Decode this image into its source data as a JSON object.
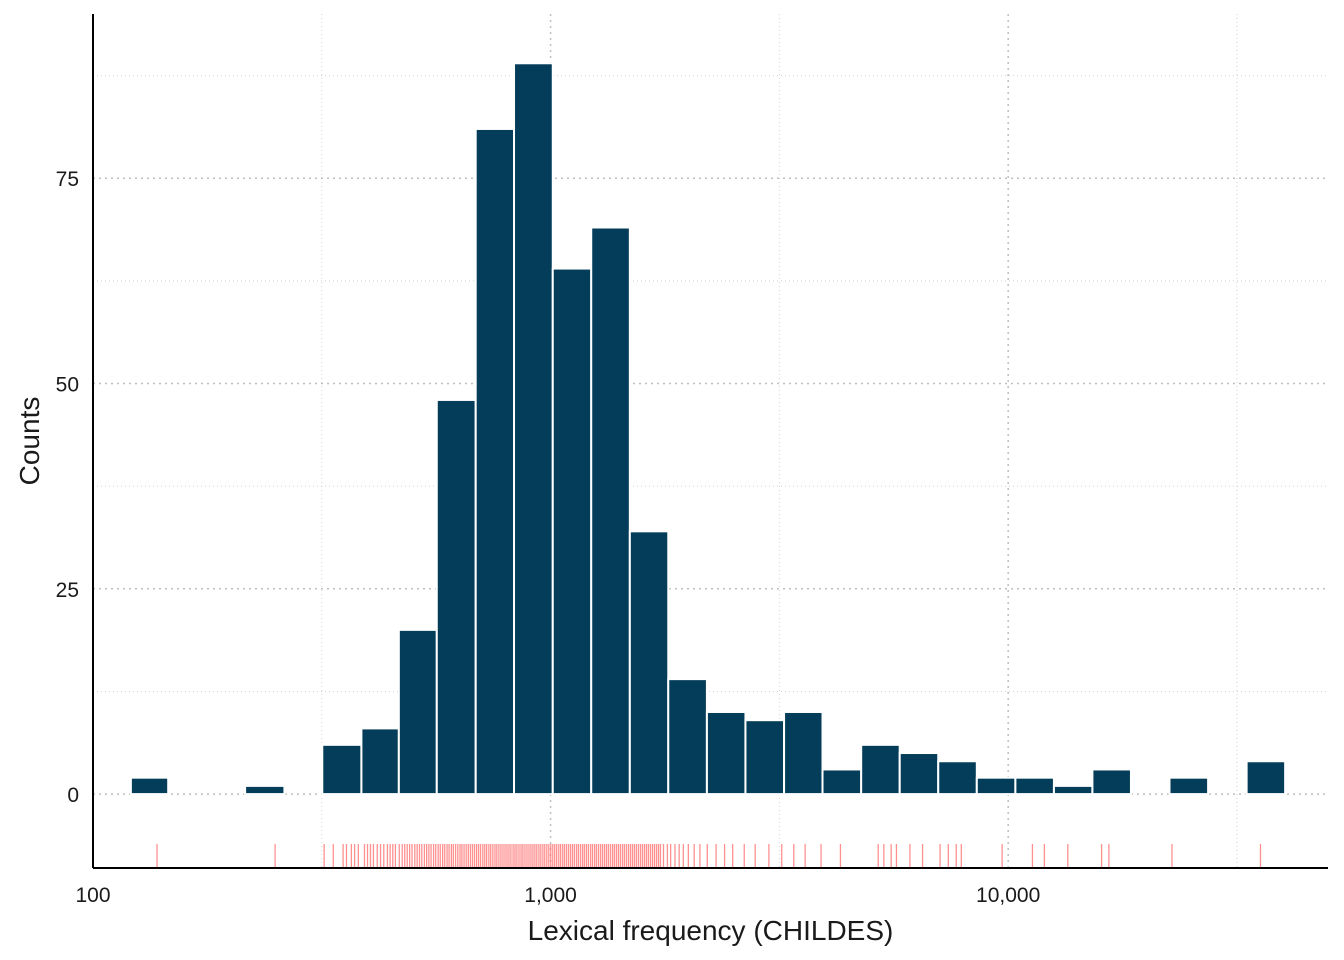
{
  "chart_data": {
    "type": "bar",
    "subtype": "histogram",
    "x_scale": "log10",
    "xlabel": "Lexical frequency (CHILDES)",
    "ylabel": "Counts",
    "xlim": [
      100,
      50000
    ],
    "ylim": [
      -9,
      95
    ],
    "x_ticks": [
      {
        "value": 100,
        "label": "100"
      },
      {
        "value": 1000,
        "label": "1,000"
      },
      {
        "value": 10000,
        "label": "10,000"
      }
    ],
    "y_ticks": [
      {
        "value": 0,
        "label": "0"
      },
      {
        "value": 25,
        "label": "25"
      },
      {
        "value": 50,
        "label": "50"
      },
      {
        "value": 75,
        "label": "75"
      }
    ],
    "grid": true,
    "bins": [
      {
        "x0": 121,
        "x1": 146,
        "count": 2
      },
      {
        "x0": 215,
        "x1": 262,
        "count": 1
      },
      {
        "x0": 317,
        "x1": 386,
        "count": 6
      },
      {
        "x0": 386,
        "x1": 466,
        "count": 8
      },
      {
        "x0": 466,
        "x1": 564,
        "count": 20
      },
      {
        "x0": 564,
        "x1": 686,
        "count": 48
      },
      {
        "x0": 686,
        "x1": 832,
        "count": 81
      },
      {
        "x0": 832,
        "x1": 1011,
        "count": 89
      },
      {
        "x0": 1011,
        "x1": 1227,
        "count": 64
      },
      {
        "x0": 1227,
        "x1": 1490,
        "count": 69
      },
      {
        "x0": 1490,
        "x1": 1808,
        "count": 32
      },
      {
        "x0": 1808,
        "x1": 2196,
        "count": 14
      },
      {
        "x0": 2196,
        "x1": 2666,
        "count": 10
      },
      {
        "x0": 2666,
        "x1": 3238,
        "count": 9
      },
      {
        "x0": 3238,
        "x1": 3929,
        "count": 10
      },
      {
        "x0": 3929,
        "x1": 4773,
        "count": 3
      },
      {
        "x0": 4773,
        "x1": 5794,
        "count": 6
      },
      {
        "x0": 5794,
        "x1": 7034,
        "count": 5
      },
      {
        "x0": 7034,
        "x1": 8540,
        "count": 4
      },
      {
        "x0": 8540,
        "x1": 10370,
        "count": 2
      },
      {
        "x0": 10370,
        "x1": 12590,
        "count": 2
      },
      {
        "x0": 12590,
        "x1": 15280,
        "count": 1
      },
      {
        "x0": 15280,
        "x1": 18550,
        "count": 3
      },
      {
        "x0": 22520,
        "x1": 27350,
        "count": 2
      },
      {
        "x0": 33200,
        "x1": 40300,
        "count": 4
      }
    ],
    "rug_values": [
      138,
      250,
      320,
      335,
      352,
      358,
      367,
      373,
      380,
      392,
      398,
      404,
      410,
      418,
      425,
      432,
      440,
      446,
      452,
      458,
      467,
      474,
      480,
      486,
      492,
      498,
      505,
      511,
      517,
      523,
      530,
      536,
      542,
      548,
      555,
      561,
      568,
      574,
      581,
      587,
      594,
      600,
      607,
      613,
      620,
      627,
      634,
      640,
      647,
      654,
      661,
      668,
      675,
      682,
      689,
      696,
      703,
      711,
      718,
      725,
      733,
      740,
      748,
      756,
      763,
      771,
      779,
      787,
      795,
      803,
      811,
      819,
      828,
      836,
      844,
      853,
      862,
      870,
      879,
      888,
      897,
      906,
      915,
      924,
      933,
      943,
      952,
      962,
      971,
      981,
      991,
      1001,
      1011,
      1021,
      1031,
      1042,
      1052,
      1063,
      1073,
      1084,
      1095,
      1106,
      1117,
      1128,
      1140,
      1151,
      1163,
      1175,
      1186,
      1198,
      1210,
      1223,
      1235,
      1248,
      1260,
      1273,
      1286,
      1299,
      1312,
      1325,
      1338,
      1352,
      1366,
      1379,
      1393,
      1407,
      1421,
      1436,
      1450,
      1465,
      1480,
      1495,
      1510,
      1525,
      1540,
      1556,
      1572,
      1588,
      1604,
      1620,
      1636,
      1653,
      1670,
      1687,
      1704,
      1721,
      1738,
      1765,
      1800,
      1830,
      1870,
      1910,
      1950,
      2000,
      2060,
      2120,
      2200,
      2300,
      2400,
      2500,
      2650,
      2800,
      3000,
      3200,
      3400,
      3600,
      3900,
      4300,
      5200,
      5350,
      5550,
      5700,
      6100,
      6500,
      7100,
      7400,
      7700,
      7900,
      9700,
      11300,
      12000,
      13500,
      16000,
      16600,
      22800,
      35600
    ]
  },
  "colors": {
    "bar_fill": "#033d59",
    "bar_stroke": "#ffffff",
    "rug": "#ff6b6b",
    "grid": "#bfbfbf",
    "axis": "#000000"
  }
}
